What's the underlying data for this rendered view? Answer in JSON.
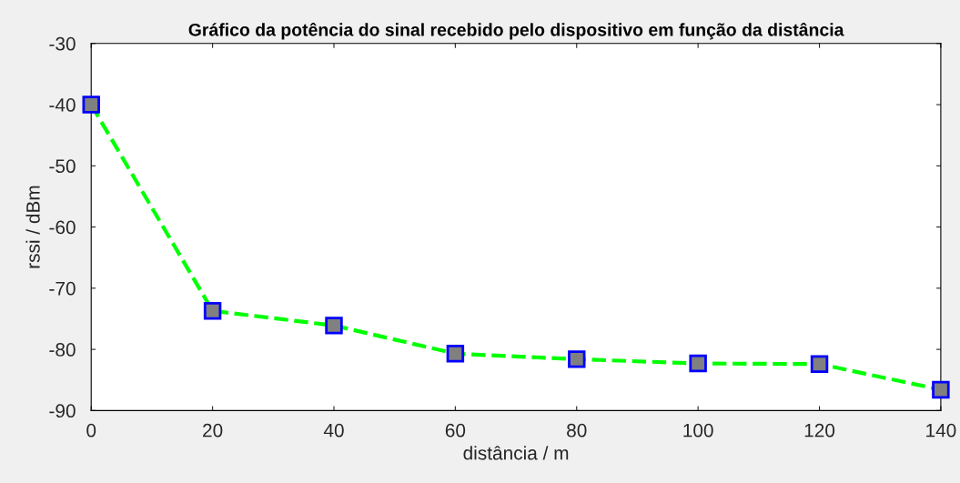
{
  "chart_data": {
    "type": "line",
    "title": "Gráfico da potência do sinal recebido pelo dispositivo em função da distância",
    "xlabel": "distância / m",
    "ylabel": "rssi / dBm",
    "x": [
      0,
      20,
      40,
      60,
      80,
      100,
      120,
      140
    ],
    "series": [
      {
        "color": "#00ff00",
        "values": [
          -40.0,
          -73.7,
          -76.1,
          -80.7,
          -81.6,
          -82.3,
          -82.4,
          -86.6
        ]
      }
    ],
    "xlim": [
      0,
      140
    ],
    "xticks": [
      0,
      20,
      40,
      60,
      80,
      100,
      120,
      140
    ],
    "ylim": [
      -90,
      -30
    ],
    "yticks": [
      -90,
      -80,
      -70,
      -60,
      -50,
      -40,
      -30
    ],
    "grid": false,
    "legend": false,
    "marker": "square",
    "line_style": "dashed"
  }
}
